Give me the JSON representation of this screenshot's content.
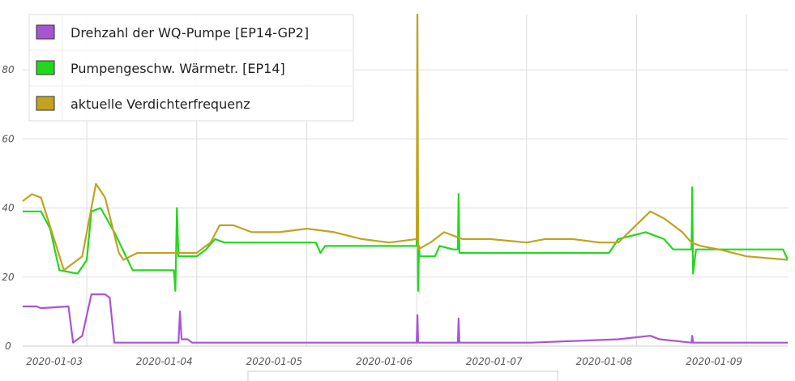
{
  "chart_data": {
    "type": "line",
    "title": "",
    "xlabel": "",
    "ylabel": "",
    "ylim": [
      0,
      96
    ],
    "xlim": [
      "2020-01-02 10:00",
      "2020-01-09 09:00"
    ],
    "grid": true,
    "legend_position": "top-left",
    "y_ticks": [
      "0",
      "20",
      "40",
      "60",
      "80"
    ],
    "x_ticks": [
      "2020-01-03",
      "2020-01-04",
      "2020-01-05",
      "2020-01-06",
      "2020-01-07",
      "2020-01-08",
      "2020-01-09"
    ],
    "series": [
      {
        "name": "Drehzahl der WQ-Pumpe [EP14-GP2]",
        "color": "#a855d4",
        "x": [
          "2020-01-02 10:00",
          "2020-01-02 13:00",
          "2020-01-02 14:00",
          "2020-01-02 20:00",
          "2020-01-02 21:00",
          "2020-01-02 22:00",
          "2020-01-02 23:00",
          "2020-01-03 01:00",
          "2020-01-03 04:00",
          "2020-01-03 05:00",
          "2020-01-03 06:00",
          "2020-01-03 20:00",
          "2020-01-03 20:20",
          "2020-01-03 20:40",
          "2020-01-03 22:00",
          "2020-01-03 23:00",
          "2020-01-06 00:00",
          "2020-01-06 00:10",
          "2020-01-06 00:20",
          "2020-01-06 09:00",
          "2020-01-06 09:10",
          "2020-01-06 09:20",
          "2020-01-07 01:00",
          "2020-01-07 20:00",
          "2020-01-08 03:00",
          "2020-01-08 05:00",
          "2020-01-08 12:00",
          "2020-01-08 12:10",
          "2020-01-08 12:20",
          "2020-01-09 09:00"
        ],
        "values": [
          11.5,
          11.5,
          11,
          11.5,
          1,
          2,
          3,
          15,
          15,
          14,
          1,
          1,
          10,
          2,
          2,
          1,
          1,
          9,
          1,
          1,
          8,
          1,
          1,
          2,
          3,
          2,
          1,
          3,
          1,
          1
        ]
      },
      {
        "name": "Pumpengeschw. Wärmetr. [EP14]",
        "color": "#22d81c",
        "x": [
          "2020-01-02 10:00",
          "2020-01-02 14:00",
          "2020-01-02 16:00",
          "2020-01-02 18:00",
          "2020-01-02 22:00",
          "2020-01-03 00:00",
          "2020-01-03 01:00",
          "2020-01-03 03:00",
          "2020-01-03 06:00",
          "2020-01-03 10:00",
          "2020-01-03 19:00",
          "2020-01-03 19:20",
          "2020-01-03 19:40",
          "2020-01-03 20:00",
          "2020-01-03 20:20",
          "2020-01-03 20:40",
          "2020-01-04 00:00",
          "2020-01-04 02:00",
          "2020-01-04 04:00",
          "2020-01-04 06:00",
          "2020-01-05 02:00",
          "2020-01-05 03:00",
          "2020-01-05 04:00",
          "2020-01-06 00:00",
          "2020-01-06 00:10",
          "2020-01-06 00:20",
          "2020-01-06 00:30",
          "2020-01-06 00:40",
          "2020-01-06 01:00",
          "2020-01-06 04:00",
          "2020-01-06 05:00",
          "2020-01-06 08:00",
          "2020-01-06 09:00",
          "2020-01-06 09:10",
          "2020-01-06 09:20",
          "2020-01-07 14:00",
          "2020-01-07 18:00",
          "2020-01-07 20:00",
          "2020-01-08 02:00",
          "2020-01-08 04:00",
          "2020-01-08 06:00",
          "2020-01-08 08:00",
          "2020-01-08 12:00",
          "2020-01-08 12:10",
          "2020-01-08 12:20",
          "2020-01-08 13:00",
          "2020-01-09 08:00",
          "2020-01-09 09:00"
        ],
        "values": [
          39,
          39,
          34,
          22,
          21,
          25,
          39,
          40,
          33,
          22,
          22,
          16,
          40,
          26,
          26,
          26,
          26,
          28,
          31,
          30,
          30,
          27,
          29,
          29,
          51,
          16,
          29,
          26,
          26,
          26,
          29,
          28,
          28,
          44,
          27,
          27,
          27,
          31,
          33,
          32,
          31,
          28,
          28,
          46,
          21,
          28,
          28,
          25
        ]
      },
      {
        "name": "aktuelle Verdichterfrequenz",
        "color": "#c2a21e",
        "x": [
          "2020-01-02 10:00",
          "2020-01-02 12:00",
          "2020-01-02 14:00",
          "2020-01-02 19:00",
          "2020-01-02 23:00",
          "2020-01-03 02:00",
          "2020-01-03 04:00",
          "2020-01-03 07:00",
          "2020-01-03 08:00",
          "2020-01-03 11:00",
          "2020-01-03 20:00",
          "2020-01-04 00:00",
          "2020-01-04 02:00",
          "2020-01-04 03:00",
          "2020-01-04 05:00",
          "2020-01-04 08:00",
          "2020-01-04 12:00",
          "2020-01-04 18:00",
          "2020-01-05 00:00",
          "2020-01-05 06:00",
          "2020-01-05 12:00",
          "2020-01-05 18:00",
          "2020-01-06 00:00",
          "2020-01-06 00:10",
          "2020-01-06 00:20",
          "2020-01-06 03:00",
          "2020-01-06 06:00",
          "2020-01-06 10:00",
          "2020-01-06 16:00",
          "2020-01-07 00:00",
          "2020-01-07 04:00",
          "2020-01-07 10:00",
          "2020-01-07 16:00",
          "2020-01-07 20:00",
          "2020-01-08 03:00",
          "2020-01-08 06:00",
          "2020-01-08 10:00",
          "2020-01-08 12:00",
          "2020-01-08 14:00",
          "2020-01-08 18:00",
          "2020-01-09 00:00",
          "2020-01-09 09:00"
        ],
        "values": [
          42,
          44,
          43,
          22,
          26,
          47,
          43,
          27,
          25,
          27,
          27,
          27,
          29,
          30,
          35,
          35,
          33,
          33,
          34,
          33,
          31,
          30,
          31,
          96,
          28,
          30,
          33,
          31,
          31,
          30,
          31,
          31,
          30,
          30,
          39,
          37,
          33,
          30,
          29,
          28,
          26,
          25
        ]
      }
    ]
  }
}
